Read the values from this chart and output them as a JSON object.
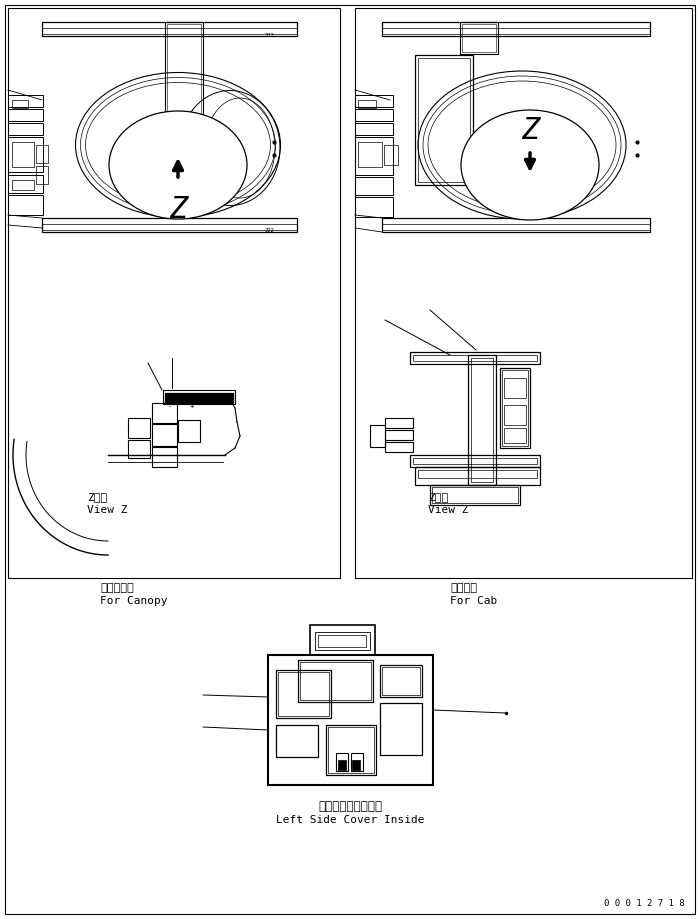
{
  "bg_color": "#ffffff",
  "lc": "#000000",
  "left_jp": "キャノピ用",
  "left_en": "For Canopy",
  "right_jp": "キャブ用",
  "right_en": "For Cab",
  "view_z_jp": "Z　視",
  "view_z_en": "View Z",
  "bottom_jp": "左サイドカバー内側",
  "bottom_en": "Left Side Cover Inside",
  "serial": "0 0 0 1 2 7 1 8"
}
